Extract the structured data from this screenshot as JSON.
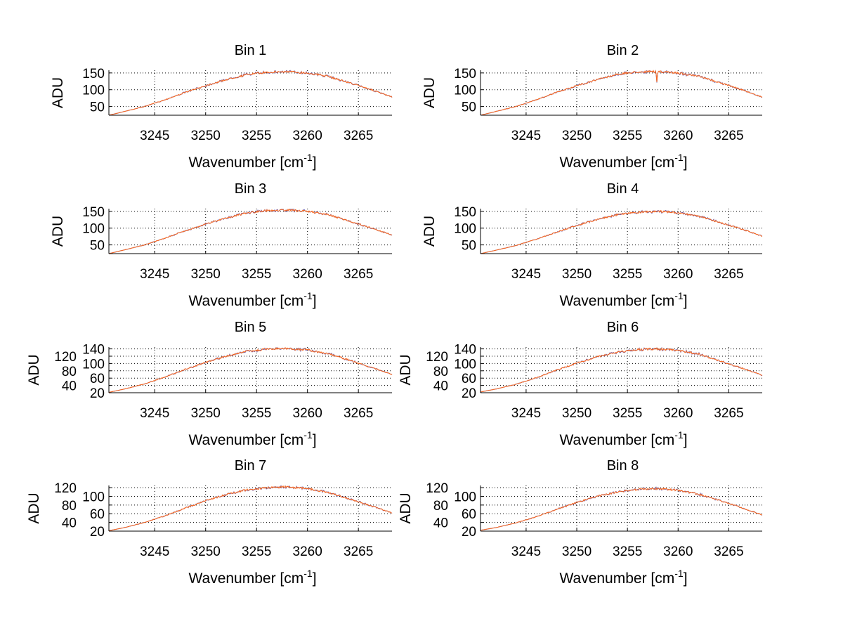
{
  "chart_data": [
    {
      "type": "line",
      "title": "Bin 1",
      "xlabel": "Wavenumber [cm",
      "xlabel_sup": "-1",
      "xlabel_end": "]",
      "ylabel": "ADU",
      "xlim": [
        3240.5,
        3268.3
      ],
      "ylim": [
        24,
        158
      ],
      "xticks": [
        3245,
        3250,
        3255,
        3260,
        3265
      ],
      "yticks": [
        50,
        100,
        150
      ],
      "grid": true,
      "x": [
        3240.5,
        3242,
        3244,
        3246,
        3248,
        3250,
        3252,
        3254,
        3256,
        3258,
        3260,
        3262,
        3264,
        3266,
        3268.3
      ],
      "values": [
        24,
        35,
        50,
        70,
        92,
        112,
        130,
        145,
        152,
        154,
        150,
        140,
        122,
        103,
        78
      ]
    },
    {
      "type": "line",
      "title": "Bin 2",
      "xlabel": "Wavenumber [cm",
      "xlabel_sup": "-1",
      "xlabel_end": "]",
      "ylabel": "ADU",
      "xlim": [
        3240.5,
        3268.3
      ],
      "ylim": [
        24,
        158
      ],
      "xticks": [
        3245,
        3250,
        3255,
        3260,
        3265
      ],
      "yticks": [
        50,
        100,
        150
      ],
      "grid": true,
      "x": [
        3240.5,
        3242,
        3244,
        3246,
        3248,
        3250,
        3252,
        3254,
        3256,
        3257.8,
        3257.9,
        3258,
        3260,
        3262,
        3264,
        3266,
        3268.3
      ],
      "values": [
        24,
        35,
        50,
        70,
        92,
        112,
        130,
        146,
        153,
        154,
        125,
        154,
        150,
        140,
        122,
        103,
        78
      ]
    },
    {
      "type": "line",
      "title": "Bin 3",
      "xlabel": "Wavenumber [cm",
      "xlabel_sup": "-1",
      "xlabel_end": "]",
      "ylabel": "ADU",
      "xlim": [
        3240.5,
        3268.3
      ],
      "ylim": [
        24,
        158
      ],
      "xticks": [
        3245,
        3250,
        3255,
        3260,
        3265
      ],
      "yticks": [
        50,
        100,
        150
      ],
      "grid": true,
      "x": [
        3240.5,
        3242,
        3244,
        3246,
        3248,
        3250,
        3252,
        3254,
        3256,
        3258,
        3260,
        3262,
        3264,
        3266,
        3268.3
      ],
      "values": [
        24,
        35,
        50,
        70,
        92,
        112,
        130,
        145,
        152,
        154,
        150,
        140,
        122,
        103,
        80
      ]
    },
    {
      "type": "line",
      "title": "Bin 4",
      "xlabel": "Wavenumber [cm",
      "xlabel_sup": "-1",
      "xlabel_end": "]",
      "ylabel": "ADU",
      "xlim": [
        3240.5,
        3268.3
      ],
      "ylim": [
        24,
        158
      ],
      "xticks": [
        3245,
        3250,
        3255,
        3260,
        3265
      ],
      "yticks": [
        50,
        100,
        150
      ],
      "grid": true,
      "x": [
        3240.5,
        3242,
        3244,
        3246,
        3248,
        3250,
        3252,
        3254,
        3256,
        3258,
        3260,
        3262,
        3264,
        3266,
        3268.3
      ],
      "values": [
        24,
        34,
        48,
        67,
        88,
        108,
        126,
        140,
        147,
        150,
        146,
        136,
        118,
        100,
        76
      ]
    },
    {
      "type": "line",
      "title": "Bin 5",
      "xlabel": "Wavenumber [cm",
      "xlabel_sup": "-1",
      "xlabel_end": "]",
      "ylabel": "ADU",
      "xlim": [
        3240.5,
        3268.3
      ],
      "ylim": [
        20,
        145
      ],
      "xticks": [
        3245,
        3250,
        3255,
        3260,
        3265
      ],
      "yticks": [
        20,
        40,
        60,
        80,
        100,
        120,
        140
      ],
      "grid": true,
      "x": [
        3240.5,
        3242,
        3244,
        3246,
        3248,
        3250,
        3252,
        3254,
        3256,
        3258,
        3260,
        3262,
        3264,
        3266,
        3268.3
      ],
      "values": [
        21,
        30,
        44,
        63,
        84,
        103,
        120,
        133,
        139,
        141,
        137,
        127,
        110,
        92,
        70
      ]
    },
    {
      "type": "line",
      "title": "Bin 6",
      "xlabel": "Wavenumber [cm",
      "xlabel_sup": "-1",
      "xlabel_end": "]",
      "ylabel": "ADU",
      "xlim": [
        3240.5,
        3268.3
      ],
      "ylim": [
        20,
        145
      ],
      "xticks": [
        3245,
        3250,
        3255,
        3260,
        3265
      ],
      "yticks": [
        20,
        40,
        60,
        80,
        100,
        120,
        140
      ],
      "grid": true,
      "x": [
        3240.5,
        3242,
        3244,
        3246,
        3248,
        3250,
        3252,
        3254,
        3256,
        3258,
        3260,
        3262,
        3264,
        3266,
        3268.3
      ],
      "values": [
        22,
        30,
        43,
        61,
        82,
        101,
        118,
        131,
        138,
        140,
        136,
        126,
        108,
        90,
        68
      ]
    },
    {
      "type": "line",
      "title": "Bin 7",
      "xlabel": "Wavenumber [cm",
      "xlabel_sup": "-1",
      "xlabel_end": "]",
      "ylabel": "ADU",
      "xlim": [
        3240.5,
        3268.3
      ],
      "ylim": [
        20,
        125
      ],
      "xticks": [
        3245,
        3250,
        3255,
        3260,
        3265
      ],
      "yticks": [
        20,
        40,
        60,
        80,
        100,
        120
      ],
      "grid": true,
      "x": [
        3240.5,
        3242,
        3244,
        3246,
        3248,
        3250,
        3252,
        3254,
        3256,
        3258,
        3260,
        3262,
        3264,
        3266,
        3268.3
      ],
      "values": [
        21,
        28,
        40,
        55,
        73,
        90,
        104,
        115,
        120,
        122,
        118,
        109,
        95,
        80,
        62
      ]
    },
    {
      "type": "line",
      "title": "Bin 8",
      "xlabel": "Wavenumber [cm",
      "xlabel_sup": "-1",
      "xlabel_end": "]",
      "ylabel": "ADU",
      "xlim": [
        3240.5,
        3268.3
      ],
      "ylim": [
        20,
        125
      ],
      "xticks": [
        3245,
        3250,
        3255,
        3260,
        3265
      ],
      "yticks": [
        20,
        40,
        60,
        80,
        100,
        120
      ],
      "grid": true,
      "x": [
        3240.5,
        3242,
        3244,
        3246,
        3248,
        3250,
        3252,
        3254,
        3256,
        3258,
        3260,
        3262,
        3264,
        3266,
        3268.3
      ],
      "values": [
        22,
        28,
        39,
        53,
        70,
        86,
        100,
        110,
        116,
        118,
        114,
        105,
        91,
        76,
        57
      ]
    }
  ],
  "colors": {
    "line_main": "#ff6a1a",
    "line_under": "#4a3fa8",
    "grid": "#000000"
  }
}
